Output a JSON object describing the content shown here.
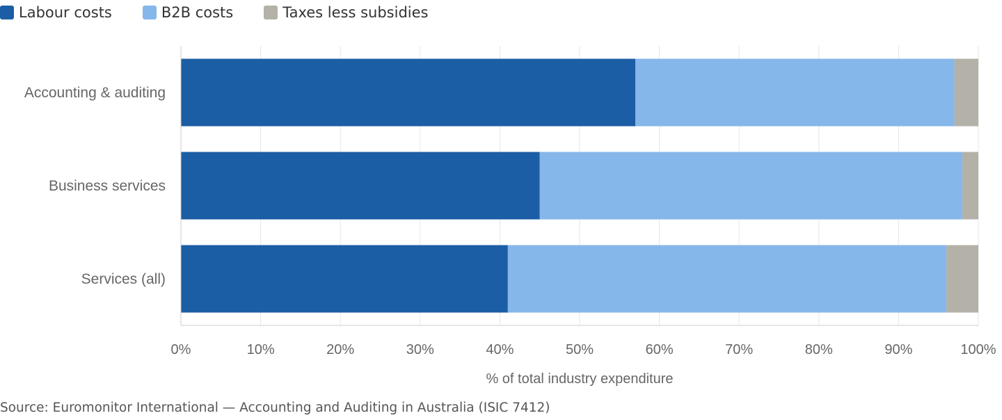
{
  "legend": [
    {
      "label": "Labour costs",
      "color": "#1c5ea5"
    },
    {
      "label": "B2B costs",
      "color": "#86b7ea"
    },
    {
      "label": "Taxes less subsidies",
      "color": "#b3b1a8"
    }
  ],
  "chart_data": {
    "type": "bar",
    "orientation": "horizontal",
    "stacked": true,
    "categories": [
      "Accounting & auditing",
      "Business services",
      "Services (all)"
    ],
    "series": [
      {
        "name": "Labour costs",
        "color": "#1c5ea5",
        "values": [
          57,
          45,
          41
        ]
      },
      {
        "name": "B2B costs",
        "color": "#86b7ea",
        "values": [
          40,
          53,
          55
        ]
      },
      {
        "name": "Taxes less subsidies",
        "color": "#b3b1a8",
        "values": [
          3,
          2,
          4
        ]
      }
    ],
    "xlabel": "% of total industry expenditure",
    "xlim": [
      0,
      100
    ],
    "xticks": [
      "0%",
      "10%",
      "20%",
      "30%",
      "40%",
      "50%",
      "60%",
      "70%",
      "80%",
      "90%",
      "100%"
    ],
    "grid": true,
    "legend_position": "top-left"
  },
  "source": "Source: Euromonitor International — Accounting and Auditing in Australia (ISIC 7412)"
}
